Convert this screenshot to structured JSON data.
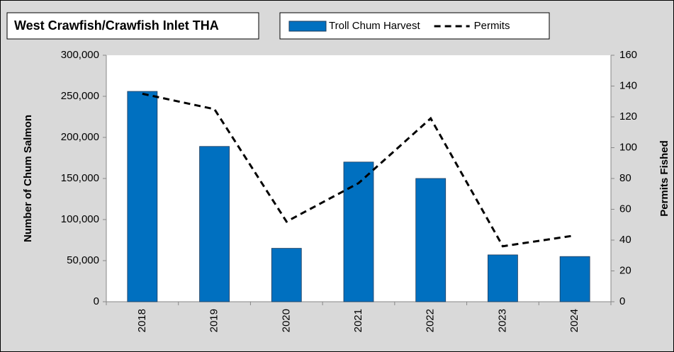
{
  "chart_data": {
    "type": "bar",
    "title": "West Crawfish/Crawfish Inlet THA",
    "ylabel": "Number of Chum Salmon",
    "y2label": "Permits Fished",
    "categories": [
      "2018",
      "2019",
      "2020",
      "2021",
      "2022",
      "2023",
      "2024"
    ],
    "series": [
      {
        "name": "Troll Chum Harvest",
        "type": "bar",
        "color": "#0070c0",
        "values": [
          256000,
          189000,
          65000,
          170000,
          150000,
          57000,
          55000
        ]
      },
      {
        "name": "Permits",
        "type": "line",
        "dashed": true,
        "color": "#000000",
        "axis": "y2",
        "values": [
          135,
          125,
          52,
          77,
          119,
          36,
          43
        ]
      }
    ],
    "ylim": [
      0,
      300000
    ],
    "yticks": [
      0,
      {
        "value": 50000,
        "label": "50,000"
      },
      {
        "value": 100000,
        "label": "100,000"
      },
      {
        "value": 150000,
        "label": "150,000"
      },
      {
        "value": 200000,
        "label": "200,000"
      },
      {
        "value": 250000,
        "label": "250,000"
      },
      {
        "value": 300000,
        "label": "300,000"
      }
    ],
    "y2lim": [
      0,
      160
    ],
    "y2ticks": [
      0,
      20,
      40,
      60,
      80,
      100,
      120,
      140,
      160
    ]
  }
}
